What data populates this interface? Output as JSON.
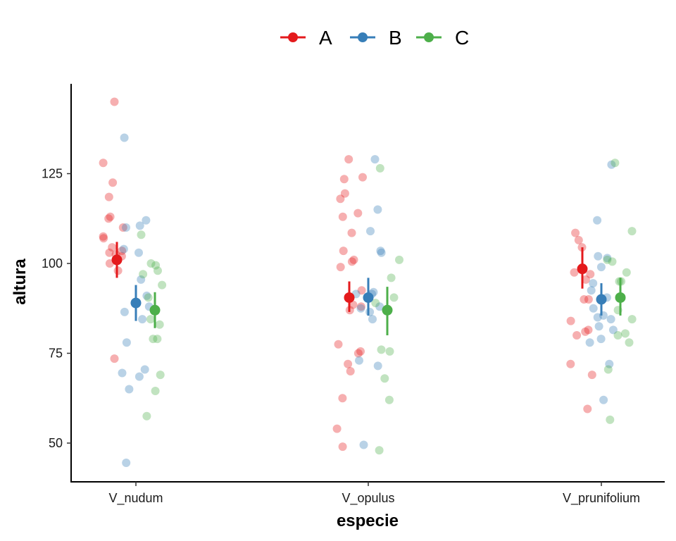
{
  "chart_data": {
    "type": "scatter",
    "xlabel": "especie",
    "ylabel": "altura",
    "categories": [
      "V_nudum",
      "V_opulus",
      "V_prunifolium"
    ],
    "ylim": [
      40,
      150
    ],
    "yticks": [
      50,
      75,
      100,
      125
    ],
    "grid": false,
    "legend_position": "top",
    "series": [
      {
        "name": "A",
        "color": "#e41a1c",
        "summary": [
          {
            "category": "V_nudum",
            "mean": 101,
            "low": 96,
            "high": 106
          },
          {
            "category": "V_opulus",
            "mean": 90.5,
            "low": 86.5,
            "high": 95
          },
          {
            "category": "V_prunifolium",
            "mean": 98.5,
            "low": 93,
            "high": 104.5
          }
        ],
        "points": [
          {
            "category": "V_nudum",
            "y": [
              145,
              128,
              122.5,
              118.5,
              113,
              112.5,
              110,
              107.5,
              107,
              104.5,
              103.5,
              103,
              102.5,
              102,
              100,
              98,
              73.5
            ]
          },
          {
            "category": "V_opulus",
            "y": [
              129,
              124,
              123.5,
              119.5,
              118,
              114,
              113,
              108.5,
              103.5,
              101,
              100.5,
              99,
              92.5,
              88.5,
              88,
              87,
              77.5,
              75.5,
              75,
              72,
              70,
              62.5,
              54,
              49
            ]
          },
          {
            "category": "V_prunifolium",
            "y": [
              108.5,
              106.5,
              104.5,
              97.5,
              97,
              95.5,
              90,
              90,
              84,
              81.5,
              81,
              80,
              72,
              69,
              59.5
            ]
          }
        ]
      },
      {
        "name": "B",
        "color": "#377eb8",
        "summary": [
          {
            "category": "V_nudum",
            "mean": 89,
            "low": 84,
            "high": 94
          },
          {
            "category": "V_opulus",
            "mean": 90.5,
            "low": 85.5,
            "high": 96
          },
          {
            "category": "V_prunifolium",
            "mean": 90,
            "low": 85.5,
            "high": 94.5
          }
        ],
        "points": [
          {
            "category": "V_nudum",
            "y": [
              135,
              112,
              110.5,
              110,
              104,
              103,
              95.5,
              91,
              88,
              86.5,
              84.5,
              78,
              70.5,
              69.5,
              68.5,
              65,
              44.5
            ]
          },
          {
            "category": "V_opulus",
            "y": [
              129,
              115,
              109,
              103.5,
              103,
              92,
              91.5,
              91.5,
              88,
              87.5,
              86.5,
              84.5,
              73,
              71.5,
              49.5
            ]
          },
          {
            "category": "V_prunifolium",
            "y": [
              127.5,
              112,
              102,
              101.5,
              99,
              94.5,
              92.5,
              90.5,
              87.5,
              85.5,
              85,
              84.5,
              82.5,
              81.5,
              79,
              78,
              72,
              62
            ]
          }
        ]
      },
      {
        "name": "C",
        "color": "#4daf4a",
        "summary": [
          {
            "category": "V_nudum",
            "mean": 87,
            "low": 82,
            "high": 92
          },
          {
            "category": "V_opulus",
            "mean": 87,
            "low": 80,
            "high": 93.5
          },
          {
            "category": "V_prunifolium",
            "mean": 90.5,
            "low": 85.5,
            "high": 96
          }
        ],
        "points": [
          {
            "category": "V_nudum",
            "y": [
              108,
              100,
              99.5,
              98,
              97,
              94,
              90.5,
              84.5,
              83,
              79,
              79,
              69,
              64.5,
              57.5
            ]
          },
          {
            "category": "V_opulus",
            "y": [
              126.5,
              101,
              96,
              90.5,
              89,
              76,
              75.5,
              68,
              62,
              48
            ]
          },
          {
            "category": "V_prunifolium",
            "y": [
              128,
              109,
              101,
              100.5,
              97.5,
              95,
              95,
              87,
              84.5,
              80.5,
              80,
              78,
              70.5,
              56.5
            ]
          }
        ]
      }
    ]
  }
}
